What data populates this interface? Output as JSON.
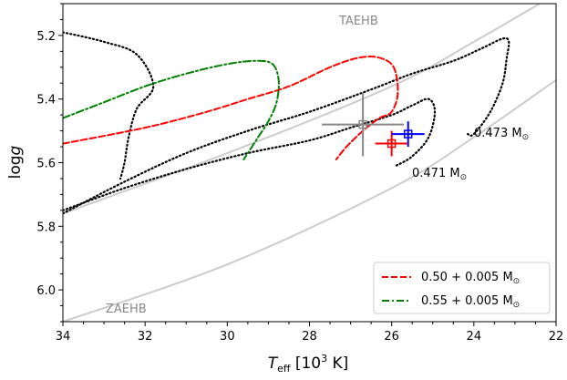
{
  "chart_data": {
    "type": "line",
    "x_axis": {
      "label_main": "T",
      "label_sub": "eff",
      "label_rest": " [10",
      "label_sup": "3",
      "label_end": " K]",
      "lim": [
        34,
        22
      ],
      "inverted": true,
      "ticks": [
        34,
        32,
        30,
        28,
        26,
        24,
        22
      ]
    },
    "y_axis": {
      "label_main": "log",
      "label_italic": "g",
      "lim": [
        5.1,
        6.1
      ],
      "inverted": true,
      "ticks": [
        5.2,
        5.4,
        5.6,
        5.8,
        6.0
      ],
      "tick_labels": [
        "5.2",
        "5.4",
        "5.6",
        "5.8",
        "6.0"
      ]
    },
    "x_tick_labels": [
      "34",
      "32",
      "30",
      "28",
      "26",
      "24",
      "22"
    ],
    "grid": false,
    "legend_position": "bottom-right",
    "annotations": {
      "taehb": "TAEHB",
      "zaehb": "ZAEHB",
      "mass_473": "0.473 M",
      "mass_471": "0.471 M",
      "sun_symbol": "⊙"
    },
    "reference_lines": [
      {
        "name": "TAEHB",
        "color": "#cccccc",
        "points": [
          [
            34,
            5.76
          ],
          [
            30,
            5.57
          ],
          [
            26,
            5.36
          ],
          [
            24,
            5.22
          ],
          [
            22.4,
            5.1
          ]
        ]
      },
      {
        "name": "ZAEHB",
        "color": "#cccccc",
        "points": [
          [
            34,
            6.1
          ],
          [
            30,
            5.92
          ],
          [
            26,
            5.68
          ],
          [
            24,
            5.52
          ],
          [
            22,
            5.34
          ]
        ]
      }
    ],
    "series": [
      {
        "name": "0.473 M",
        "style": "dotted",
        "color": "#000000",
        "points": [
          [
            34,
            5.76
          ],
          [
            32.5,
            5.66
          ],
          [
            31,
            5.57
          ],
          [
            29.5,
            5.5
          ],
          [
            28,
            5.44
          ],
          [
            26.5,
            5.37
          ],
          [
            25.5,
            5.32
          ],
          [
            24.5,
            5.28
          ],
          [
            23.8,
            5.24
          ],
          [
            23.3,
            5.21
          ],
          [
            23.15,
            5.22
          ],
          [
            23.2,
            5.27
          ],
          [
            23.3,
            5.35
          ],
          [
            23.6,
            5.44
          ],
          [
            24,
            5.51
          ],
          [
            24.15,
            5.51
          ]
        ]
      },
      {
        "name": "0.471 M",
        "style": "dotted",
        "color": "#000000",
        "points": [
          [
            34,
            5.75
          ],
          [
            32.5,
            5.68
          ],
          [
            31,
            5.62
          ],
          [
            29.5,
            5.57
          ],
          [
            28,
            5.53
          ],
          [
            27,
            5.49
          ],
          [
            26,
            5.45
          ],
          [
            25.5,
            5.42
          ],
          [
            25.1,
            5.4
          ],
          [
            24.95,
            5.44
          ],
          [
            25.1,
            5.52
          ],
          [
            25.5,
            5.58
          ],
          [
            25.9,
            5.61
          ]
        ]
      },
      {
        "name": "0.473 M branch",
        "style": "dotted",
        "color": "#000000",
        "points": [
          [
            34,
            5.19
          ],
          [
            33,
            5.22
          ],
          [
            32.2,
            5.26
          ],
          [
            31.8,
            5.36
          ],
          [
            32.2,
            5.43
          ],
          [
            32.4,
            5.52
          ],
          [
            32.5,
            5.6
          ],
          [
            32.6,
            5.65
          ]
        ]
      },
      {
        "name": "0.50 + 0.005 M",
        "style": "dashed",
        "color": "#ff0000",
        "points": [
          [
            34,
            5.54
          ],
          [
            32,
            5.49
          ],
          [
            30.5,
            5.44
          ],
          [
            29.5,
            5.4
          ],
          [
            28.5,
            5.36
          ],
          [
            27.5,
            5.3
          ],
          [
            26.8,
            5.27
          ],
          [
            26.3,
            5.27
          ],
          [
            25.95,
            5.3
          ],
          [
            25.85,
            5.38
          ],
          [
            26.0,
            5.44
          ],
          [
            26.3,
            5.46
          ],
          [
            26.7,
            5.5
          ],
          [
            27.1,
            5.55
          ],
          [
            27.35,
            5.59
          ]
        ]
      },
      {
        "name": "0.55 + 0.005 M",
        "style": "dashdot",
        "color": "#008000",
        "points": [
          [
            34,
            5.46
          ],
          [
            33,
            5.41
          ],
          [
            32,
            5.36
          ],
          [
            31,
            5.32
          ],
          [
            30,
            5.29
          ],
          [
            29.3,
            5.28
          ],
          [
            28.9,
            5.29
          ],
          [
            28.75,
            5.34
          ],
          [
            28.8,
            5.41
          ],
          [
            29.0,
            5.47
          ],
          [
            29.25,
            5.52
          ],
          [
            29.5,
            5.57
          ],
          [
            29.6,
            5.59
          ]
        ]
      }
    ],
    "data_points": [
      {
        "label": "gray",
        "color": "#888888",
        "x": 26.7,
        "y": 5.48,
        "xerr": [
          1.0,
          1.0
        ],
        "yerr": [
          0.1,
          0.1
        ]
      },
      {
        "label": "red",
        "color": "#ff0000",
        "x": 26.0,
        "y": 5.54,
        "xerr": [
          0.4,
          0.4
        ],
        "yerr": [
          0.04,
          0.04
        ]
      },
      {
        "label": "blue",
        "color": "#0000ff",
        "x": 25.6,
        "y": 5.51,
        "xerr": [
          0.4,
          0.4
        ],
        "yerr": [
          0.04,
          0.04
        ]
      }
    ],
    "legend": [
      {
        "text": "0.50 + 0.005 M",
        "color": "#ff0000",
        "style": "dashed"
      },
      {
        "text": "0.55 + 0.005 M",
        "color": "#008000",
        "style": "dashdot"
      }
    ]
  }
}
